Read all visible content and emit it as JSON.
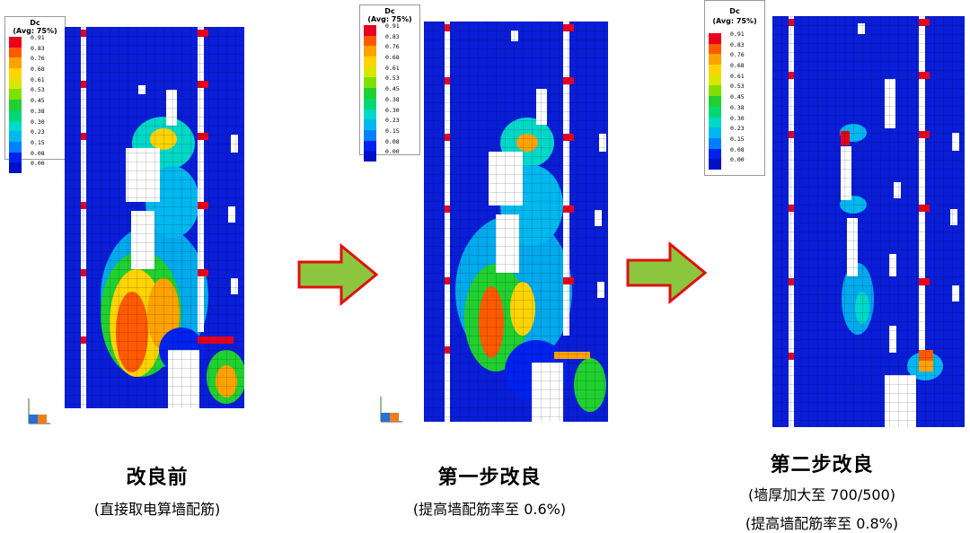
{
  "legend": {
    "title_line1": "Dc",
    "title_line2": "(Avg: 75%)",
    "ticks": [
      "0.91",
      "0.83",
      "0.76",
      "0.68",
      "0.61",
      "0.53",
      "0.45",
      "0.38",
      "0.30",
      "0.23",
      "0.15",
      "0.08",
      "0.00"
    ],
    "colors": [
      "#e8001c",
      "#ff5a00",
      "#ffa200",
      "#ffd400",
      "#d9e600",
      "#7fe000",
      "#20d030",
      "#00d872",
      "#00d8c8",
      "#00b8f0",
      "#0080ff",
      "#0022ee",
      "#0010c8"
    ]
  },
  "panels": [
    {
      "title": "改良前",
      "subtitle": "(直接取电算墙配筋)",
      "subtitle2": ""
    },
    {
      "title": "第一步改良",
      "subtitle": "(提高墙配筋率至 0.6%)",
      "subtitle2": ""
    },
    {
      "title": "第二步改良",
      "subtitle": "(墙厚加大至 700/500)",
      "subtitle2": "(提高墙配筋率至 0.8%)"
    }
  ],
  "arrow_colors": {
    "fill": "#8cc63e",
    "stroke": "#e01010"
  }
}
